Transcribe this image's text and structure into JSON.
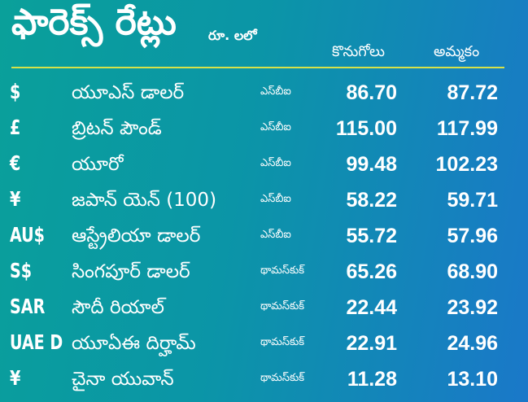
{
  "header": {
    "title": "ఫారెక్స్ రేట్లు",
    "unit": "రూ. లలో",
    "buy_label": "కొనుగోలు",
    "sell_label": "అమ్మకం"
  },
  "colors": {
    "background_start": "#0aa09a",
    "background_end": "#1a78c9",
    "rule": "#d6e24a",
    "text": "#ffffff"
  },
  "rows": [
    {
      "symbol": "$",
      "name": "యూఎస్ డాలర్",
      "source": "ఎస్‌బీఐ",
      "buy": "86.70",
      "sell": "87.72"
    },
    {
      "symbol": "£",
      "name": "బ్రిటన్ పౌండ్",
      "source": "ఎస్‌బీఐ",
      "buy": "115.00",
      "sell": "117.99"
    },
    {
      "symbol": "€",
      "name": "యూరో",
      "source": "ఎస్‌బీఐ",
      "buy": "99.48",
      "sell": "102.23"
    },
    {
      "symbol": "¥",
      "name": "జపాన్ యెన్ (100)",
      "source": "ఎస్‌బీఐ",
      "buy": "58.22",
      "sell": "59.71"
    },
    {
      "symbol": "AU$",
      "name": "ఆస్ట్రేలియా డాలర్",
      "source": "ఎస్‌బీఐ",
      "buy": "55.72",
      "sell": "57.96"
    },
    {
      "symbol": "S$",
      "name": "సింగపూర్ డాలర్",
      "source": "థామస్‌కుక్",
      "buy": "65.26",
      "sell": "68.90"
    },
    {
      "symbol": "SAR",
      "name": "సౌదీ రియాల్",
      "source": "థామస్‌కుక్",
      "buy": "22.44",
      "sell": "23.92"
    },
    {
      "symbol": "UAE D",
      "name": "యూఏఈ దిర్హామ్",
      "source": "థామస్‌కుక్",
      "buy": "22.91",
      "sell": "24.96"
    },
    {
      "symbol": "¥",
      "name": "చైనా యువాన్",
      "source": "థామస్‌కుక్",
      "buy": "11.28",
      "sell": "13.10"
    }
  ]
}
